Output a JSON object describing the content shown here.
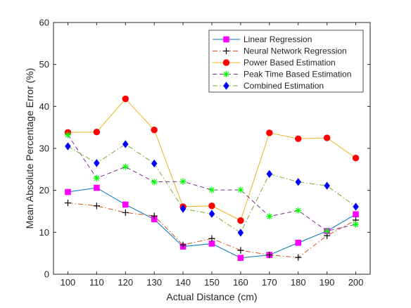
{
  "chart_data": {
    "type": "line",
    "title": "",
    "xlabel": "Actual Distance (cm)",
    "ylabel": "Mean Absolute Percentage Error (%)",
    "x": [
      100,
      110,
      120,
      130,
      140,
      150,
      160,
      170,
      180,
      190,
      200
    ],
    "xlim": [
      95,
      205
    ],
    "ylim": [
      0,
      60
    ],
    "yticks": [
      0,
      10,
      20,
      30,
      40,
      50,
      60
    ],
    "grid": false,
    "legend_position": "top-right",
    "series": [
      {
        "name": "Linear Regression",
        "color": "#0072BD",
        "line_style": "solid",
        "marker": "square",
        "marker_color": "#FF00FF",
        "values": [
          19.6,
          20.6,
          16.6,
          13.1,
          6.6,
          7.3,
          3.9,
          4.6,
          7.5,
          10.3,
          14.3
        ]
      },
      {
        "name": "Neural Network Regression",
        "color": "#D95319",
        "line_style": "dashdot",
        "marker": "plus",
        "marker_color": "#000000",
        "values": [
          17.0,
          16.3,
          14.7,
          13.9,
          7.0,
          8.5,
          5.7,
          4.6,
          4.0,
          9.2,
          12.9
        ]
      },
      {
        "name": "Power Based Estimation",
        "color": "#EDB120",
        "line_style": "solid",
        "marker": "circle",
        "marker_color": "#FF0000",
        "values": [
          33.8,
          33.9,
          41.8,
          34.4,
          16.1,
          16.3,
          12.8,
          33.7,
          32.3,
          32.5,
          27.7
        ]
      },
      {
        "name": "Peak Time Based Estimation",
        "color": "#7E2F8E",
        "line_style": "dashed",
        "marker": "asterisk",
        "marker_color": "#00FF00",
        "values": [
          33.2,
          22.9,
          25.6,
          22.0,
          22.1,
          20.1,
          20.1,
          13.8,
          15.2,
          10.3,
          11.9
        ]
      },
      {
        "name": "Combined Estimation",
        "color": "#77AC30",
        "line_style": "dashdot",
        "marker": "diamond",
        "marker_color": "#0000FF",
        "values": [
          30.5,
          26.5,
          31.0,
          26.4,
          15.6,
          14.4,
          9.9,
          23.9,
          22.0,
          21.1,
          16.1
        ]
      }
    ]
  }
}
